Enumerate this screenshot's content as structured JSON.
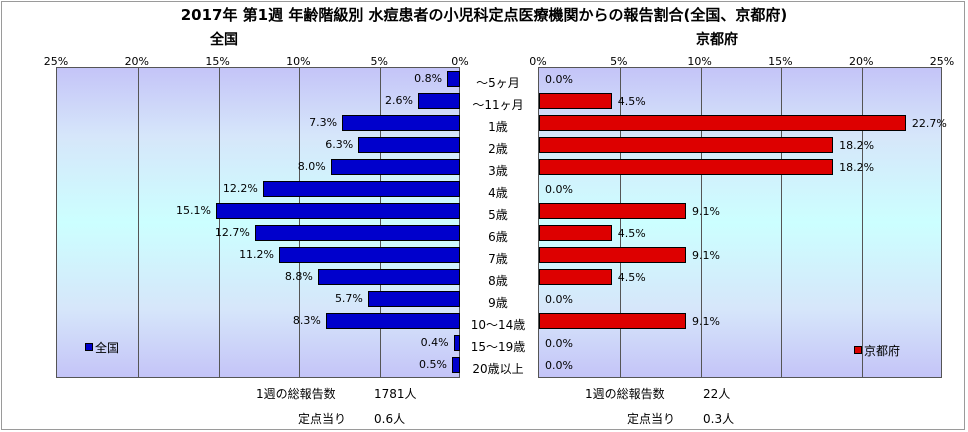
{
  "title": "2017年 第1週 年齢階級別 水痘患者の小児科定点医療機関からの報告割合(全国、京都府)",
  "left_subtitle": "全国",
  "right_subtitle": "京都府",
  "left_ticks": [
    "25%",
    "20%",
    "15%",
    "10%",
    "5%",
    "0%"
  ],
  "right_ticks": [
    "0%",
    "5%",
    "10%",
    "15%",
    "20%",
    "25%"
  ],
  "chart_data": {
    "type": "bar",
    "orientation": "horizontal",
    "title": "2017年 第1週 年齢階級別 水痘患者の小児科定点医療機関からの報告割合(全国、京都府)",
    "categories": [
      "～5ヶ月",
      "～11ヶ月",
      "1歳",
      "2歳",
      "3歳",
      "4歳",
      "5歳",
      "6歳",
      "7歳",
      "8歳",
      "9歳",
      "10～14歳",
      "15～19歳",
      "20歳以上"
    ],
    "xlim": [
      0,
      25
    ],
    "series": [
      {
        "name": "全国",
        "color": "#0000cc",
        "values": [
          0.8,
          2.6,
          7.3,
          6.3,
          8.0,
          12.2,
          15.1,
          12.7,
          11.2,
          8.8,
          5.7,
          8.3,
          0.4,
          0.5
        ],
        "labels": [
          "0.8%",
          "2.6%",
          "7.3%",
          "6.3%",
          "8.0%",
          "12.2%",
          "15.1%",
          "12.7%",
          "11.2%",
          "8.8%",
          "5.7%",
          "8.3%",
          "0.4%",
          "0.5%"
        ]
      },
      {
        "name": "京都府",
        "color": "#dd0000",
        "values": [
          0.0,
          4.5,
          22.7,
          18.2,
          18.2,
          0.0,
          9.1,
          4.5,
          9.1,
          4.5,
          0.0,
          9.1,
          0.0,
          0.0
        ],
        "labels": [
          "0.0%",
          "4.5%",
          "22.7%",
          "18.2%",
          "18.2%",
          "0.0%",
          "9.1%",
          "4.5%",
          "9.1%",
          "4.5%",
          "0.0%",
          "9.1%",
          "0.0%",
          "0.0%"
        ]
      }
    ]
  },
  "legend": {
    "left": "全国",
    "right": "京都府"
  },
  "footer": {
    "left_total_label": "1週の総報告数",
    "left_total_value": "1781人",
    "left_per_label": "定点当り",
    "left_per_value": "0.6人",
    "right_total_label": "1週の総報告数",
    "right_total_value": "22人",
    "right_per_label": "定点当り",
    "right_per_value": "0.3人"
  }
}
